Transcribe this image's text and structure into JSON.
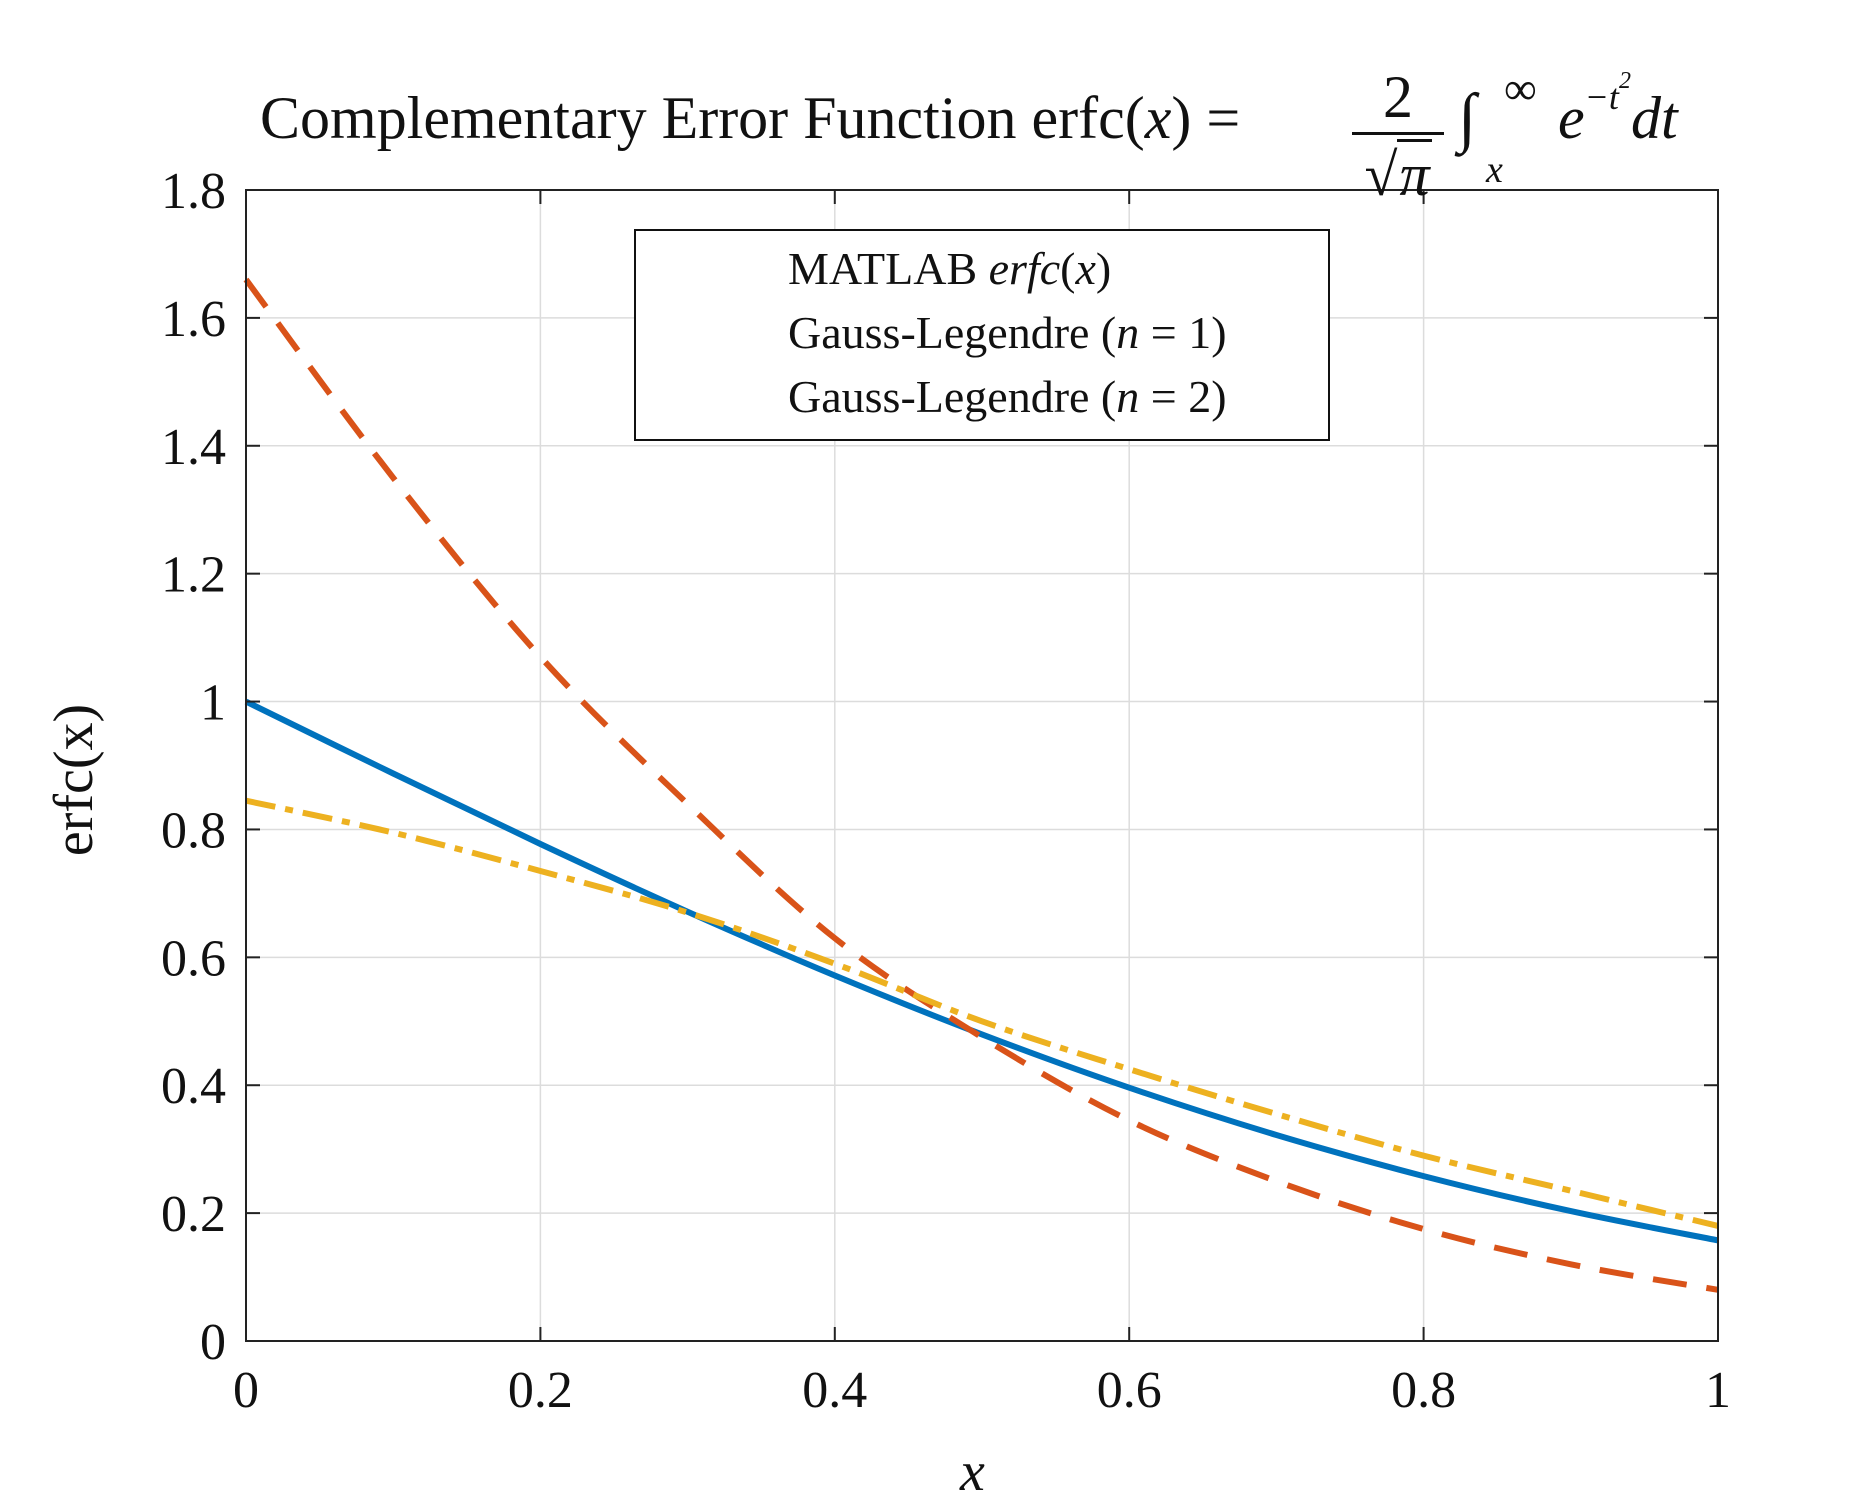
{
  "title": {
    "text": "Complementary Error Function erfc(",
    "var": "x",
    "close": ") =",
    "frac_num": "2",
    "frac_den": "π",
    "int_upper": "∞",
    "int_lower": "x",
    "integrand": "e",
    "exponent": "−t",
    "exponent_power": "2",
    "differential": "dt"
  },
  "chart_data": {
    "type": "line",
    "xlabel": "x",
    "ylabel": "erfc(x)",
    "xlim": [
      0,
      1
    ],
    "ylim": [
      0,
      1.8
    ],
    "xticks": [
      "0",
      "0.2",
      "0.4",
      "0.6",
      "0.8",
      "1"
    ],
    "yticks": [
      "0",
      "0.2",
      "0.4",
      "0.6",
      "0.8",
      "1",
      "1.2",
      "1.4",
      "1.6",
      "1.8"
    ],
    "grid": true,
    "legend_position": "top-center",
    "x": [
      0,
      0.1,
      0.2,
      0.3,
      0.4,
      0.5,
      0.6,
      0.7,
      0.8,
      0.9,
      1.0
    ],
    "series": [
      {
        "name": "MATLAB erfc(x)",
        "name_prefix": "MATLAB ",
        "name_math": "erfc",
        "name_open": "(",
        "name_var": "x",
        "name_close": ")",
        "color": "#0072BD",
        "style": "solid",
        "values": [
          1.0,
          0.8875,
          0.7773,
          0.6714,
          0.5716,
          0.4795,
          0.3961,
          0.3222,
          0.2579,
          0.2031,
          0.1573
        ]
      },
      {
        "name": "Gauss-Legendre (n = 1)",
        "name_prefix": "Gauss-Legendre (",
        "name_var": "n",
        "name_rest": " = 1)",
        "color": "#D95319",
        "style": "dashed",
        "values": [
          1.66,
          1.35,
          1.07,
          0.84,
          0.63,
          0.475,
          0.345,
          0.25,
          0.175,
          0.12,
          0.08
        ]
      },
      {
        "name": "Gauss-Legendre (n = 2)",
        "name_prefix": "Gauss-Legendre (",
        "name_var": "n",
        "name_rest": " = 2)",
        "color": "#EDB120",
        "style": "dashdot",
        "values": [
          0.845,
          0.795,
          0.735,
          0.67,
          0.59,
          0.5,
          0.425,
          0.355,
          0.29,
          0.235,
          0.18
        ]
      }
    ]
  }
}
